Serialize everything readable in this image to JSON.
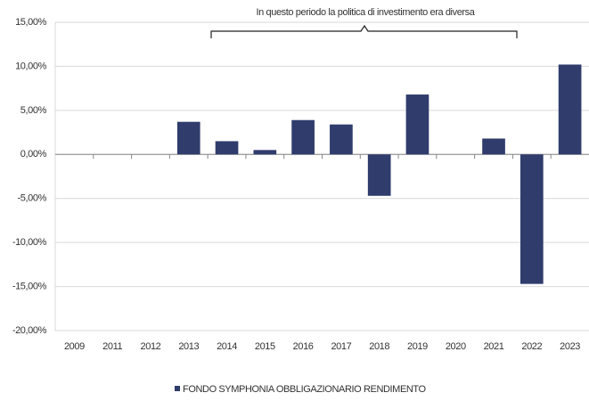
{
  "chart_data": {
    "type": "bar",
    "annotation": "In questo periodo la politica di investimento era diversa",
    "categories": [
      "2009",
      "2011",
      "2012",
      "2013",
      "2014",
      "2015",
      "2016",
      "2017",
      "2018",
      "2019",
      "2020",
      "2021",
      "2022",
      "2023"
    ],
    "series": [
      {
        "name": "FONDO SYMPHONIA OBBLIGAZIONARIO RENDIMENTO",
        "color": "#2f3c6c",
        "values": [
          null,
          null,
          null,
          3.7,
          1.5,
          0.5,
          3.9,
          3.4,
          -4.7,
          6.8,
          null,
          1.8,
          -14.7,
          10.2
        ]
      }
    ],
    "ylim": [
      -20,
      15
    ],
    "yticks": [
      {
        "value": -20,
        "label": "-20,00%"
      },
      {
        "value": -15,
        "label": "-15,00%"
      },
      {
        "value": -10,
        "label": "-10,00%"
      },
      {
        "value": -5,
        "label": "-5,00%"
      },
      {
        "value": 0,
        "label": "0,00%"
      },
      {
        "value": 5,
        "label": "5,00%"
      },
      {
        "value": 10,
        "label": "10,00%"
      },
      {
        "value": 15,
        "label": "15,00%"
      }
    ],
    "grid": true
  }
}
